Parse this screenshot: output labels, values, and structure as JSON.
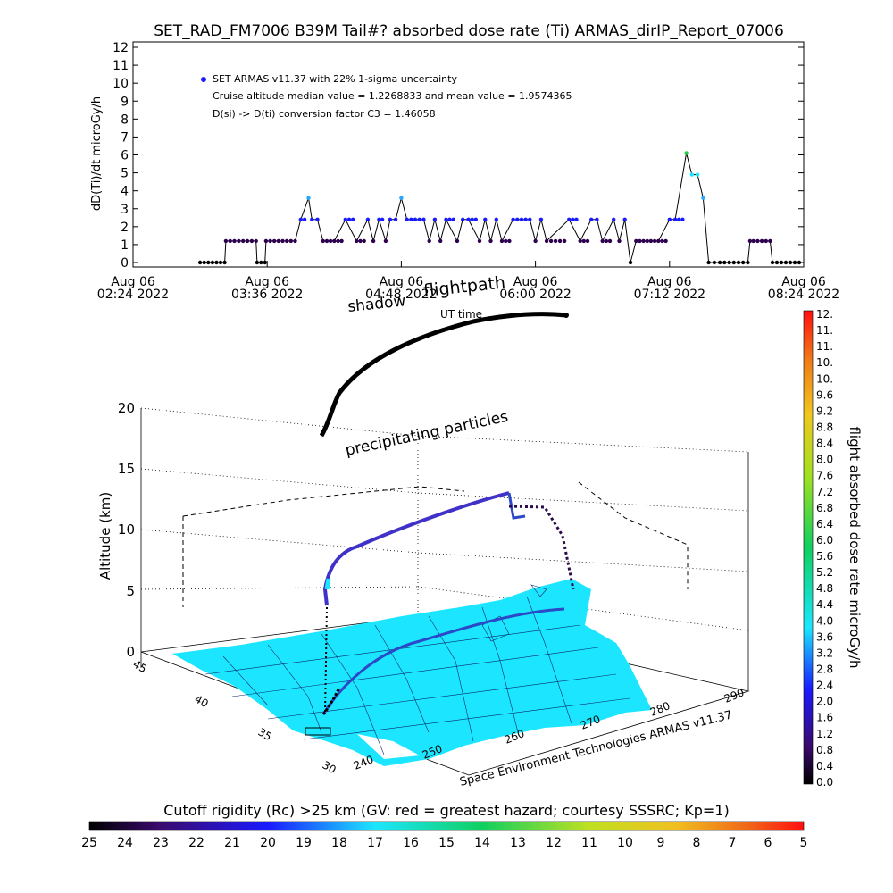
{
  "chart_data": [
    {
      "type": "line",
      "title": "SET_RAD_FM7006  B39M Tail#? absorbed dose rate (Ti) ARMAS_dirIP_Report_07006",
      "ylabel": "dD(Ti)/dt microGy/h",
      "ylim": [
        0,
        12
      ],
      "y_ticks": [
        "0",
        "1",
        "2",
        "3",
        "4",
        "5",
        "6",
        "7",
        "8",
        "9",
        "10",
        "11",
        "12"
      ],
      "x_ticks": [
        {
          "day": "Aug 06",
          "time": "02:24 2022"
        },
        {
          "day": "Aug 06",
          "time": "03:36 2022"
        },
        {
          "day": "Aug 06",
          "time": "04:48 2022"
        },
        {
          "day": "Aug 06",
          "time": "06:00 2022"
        },
        {
          "day": "Aug 06",
          "time": "07:12 2022"
        },
        {
          "day": "Aug 06",
          "time": "08:24 2022"
        }
      ],
      "xlim_hours": [
        2.4,
        8.4
      ],
      "annotations": [
        "SET ARMAS v11.37 with 22% 1-sigma uncertainty",
        "Cruise altitude median value = 1.2268833 and mean value = 1.9574365",
        "D(si) -> D(ti) conversion factor C3 = 1.46058"
      ],
      "series": [
        {
          "name": "SET ARMAS v11.37 with 22% 1-sigma uncertainty",
          "x_hours": [
            3.0,
            3.22,
            3.23,
            3.5,
            3.51,
            3.58,
            3.59,
            3.85,
            3.9,
            3.97,
            4.0,
            4.05,
            4.1,
            4.2,
            4.3,
            4.4,
            4.5,
            4.55,
            4.6,
            4.66,
            4.7,
            4.75,
            4.8,
            4.85,
            5.0,
            5.05,
            5.1,
            5.15,
            5.2,
            5.3,
            5.35,
            5.4,
            5.5,
            5.55,
            5.6,
            5.65,
            5.7,
            5.8,
            5.95,
            6.0,
            6.05,
            6.1,
            6.3,
            6.4,
            6.5,
            6.55,
            6.6,
            6.7,
            6.75,
            6.8,
            6.85,
            6.9,
            7.0,
            7.1,
            7.2,
            7.25,
            7.35,
            7.4,
            7.45,
            7.5,
            7.55,
            7.6,
            7.65,
            7.9,
            7.92,
            7.95,
            8.1,
            8.12,
            8.4
          ],
          "values": [
            0,
            0,
            1.2,
            1.2,
            0,
            0,
            1.2,
            1.2,
            2.4,
            3.6,
            2.4,
            2.4,
            1.2,
            1.2,
            2.4,
            1.2,
            2.4,
            1.2,
            2.4,
            1.2,
            2.4,
            2.4,
            3.6,
            2.4,
            2.4,
            1.2,
            2.4,
            1.2,
            2.4,
            1.2,
            2.4,
            2.4,
            1.2,
            2.4,
            1.2,
            2.4,
            1.2,
            2.4,
            2.4,
            1.2,
            2.4,
            1.2,
            2.4,
            1.2,
            2.4,
            2.4,
            1.2,
            2.4,
            1.2,
            2.4,
            0,
            1.2,
            1.2,
            1.2,
            2.4,
            2.4,
            6.1,
            4.9,
            4.9,
            3.6,
            0,
            0,
            0,
            0,
            1.2,
            1.2,
            1.2,
            0,
            0
          ]
        }
      ]
    },
    {
      "type": "scatter",
      "subtitle_labels": [
        "shadow",
        "flightpath",
        "UT time",
        "precipitating particles"
      ],
      "zlabel": "Altitude (km)",
      "zlim": [
        0,
        20
      ],
      "z_ticks": [
        "0",
        "5",
        "10",
        "15",
        "20"
      ],
      "lat_ticks": [
        "30",
        "35",
        "40",
        "45"
      ],
      "lon_ticks": [
        "240",
        "250",
        "260",
        "270",
        "280",
        "290"
      ],
      "credit": "Space Environment Technologies ARMAS v11.37",
      "colorbar": {
        "label": "flight absorbed dose rate microGy/h",
        "ticks": [
          "0.0",
          "0.4",
          "0.8",
          "1.2",
          "1.6",
          "2.0",
          "2.4",
          "2.8",
          "3.2",
          "3.6",
          "4.0",
          "4.4",
          "4.8",
          "5.2",
          "5.6",
          "6.0",
          "6.4",
          "6.8",
          "7.2",
          "7.6",
          "8.0",
          "8.4",
          "8.8",
          "9.2",
          "9.6",
          "10.",
          "10.",
          "11.",
          "11.",
          "12."
        ]
      }
    },
    {
      "type": "heatmap",
      "title": "Cutoff rigidity (Rc) >25 km (GV: red = greatest hazard; courtesy SSSRC; Kp=1)",
      "ticks": [
        "25",
        "24",
        "23",
        "22",
        "21",
        "20",
        "19",
        "18",
        "17",
        "16",
        "15",
        "14",
        "13",
        "12",
        "11",
        "10",
        "9",
        "8",
        "7",
        "6",
        "5"
      ]
    }
  ],
  "colors": {
    "series_marker": "#1a1aff",
    "low_marker": "#2d0050",
    "map_fill": "#1ce6ff",
    "land_lines": "#003060",
    "grid_high": "#e0802a",
    "grid_mid": "#d4e020",
    "grid_low": "#30d040"
  }
}
